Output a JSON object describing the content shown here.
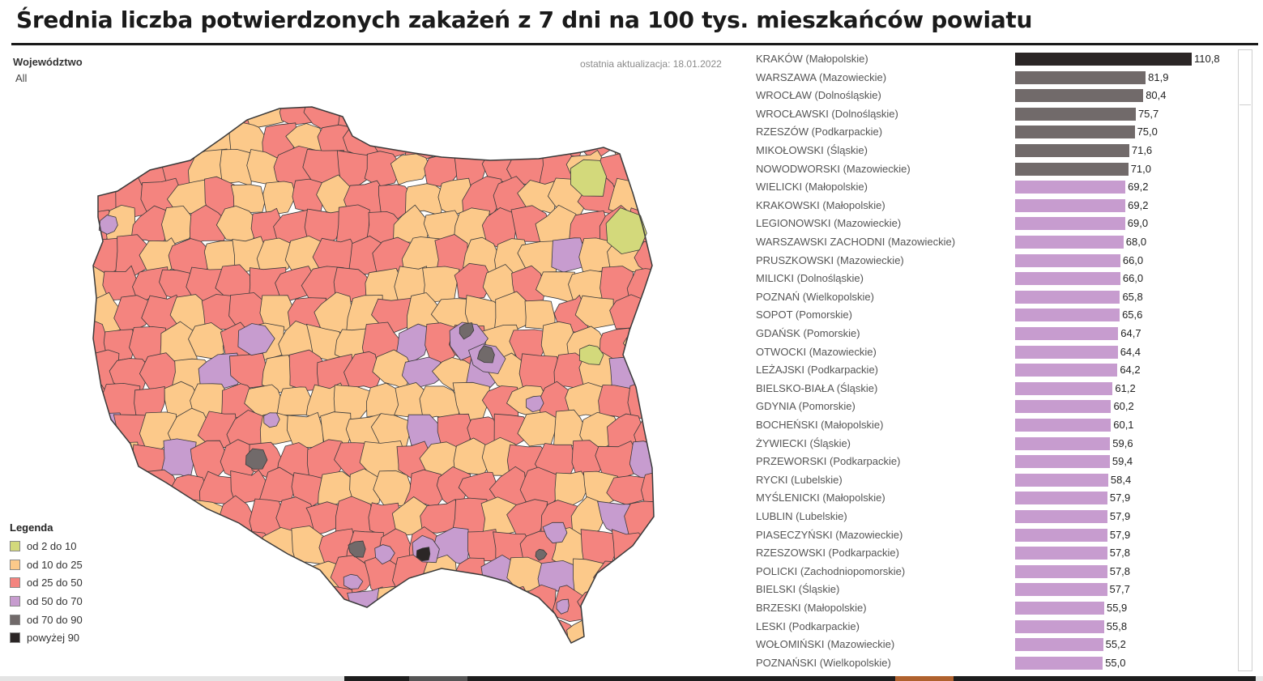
{
  "title": "Średnia liczba potwierdzonych zakażeń z 7 dni na 100 tys. mieszkańców powiatu",
  "filter": {
    "label": "Województwo",
    "value": "All"
  },
  "update_note": "ostatnia aktualizacja: 18.01.2022",
  "legend": {
    "title": "Legenda",
    "items": [
      {
        "label": "od 2 do 10",
        "color": "#d3d97b"
      },
      {
        "label": "od 10 do 25",
        "color": "#fcc98a"
      },
      {
        "label": "od 25 do 50",
        "color": "#f4847f"
      },
      {
        "label": "od 50 do 70",
        "color": "#c79ccf"
      },
      {
        "label": "od 70 do 90",
        "color": "#716a6a"
      },
      {
        "label": "powyżej 90",
        "color": "#2b2626"
      }
    ]
  },
  "chart_data": {
    "type": "bar",
    "orientation": "horizontal",
    "xlim": [
      0,
      110.8
    ],
    "categories": [
      "KRAKÓW (Małopolskie)",
      "WARSZAWA (Mazowieckie)",
      "WROCŁAW (Dolnośląskie)",
      "WROCŁAWSKI (Dolnośląskie)",
      "RZESZÓW (Podkarpackie)",
      "MIKOŁOWSKI (Śląskie)",
      "NOWODWORSKI (Mazowieckie)",
      "WIELICKI (Małopolskie)",
      "KRAKOWSKI (Małopolskie)",
      "LEGIONOWSKI (Mazowieckie)",
      "WARSZAWSKI ZACHODNI (Mazowieckie)",
      "PRUSZKOWSKI (Mazowieckie)",
      "MILICKI (Dolnośląskie)",
      "POZNAŃ (Wielkopolskie)",
      "SOPOT (Pomorskie)",
      "GDAŃSK (Pomorskie)",
      "OTWOCKI (Mazowieckie)",
      "LEŻAJSKI (Podkarpackie)",
      "BIELSKO-BIAŁA (Śląskie)",
      "GDYNIA (Pomorskie)",
      "BOCHEŃSKI (Małopolskie)",
      "ŻYWIECKI (Śląskie)",
      "PRZEWORSKI (Podkarpackie)",
      "RYCKI (Lubelskie)",
      "MYŚLENICKI (Małopolskie)",
      "LUBLIN (Lubelskie)",
      "PIASECZYŃSKI (Mazowieckie)",
      "RZESZOWSKI (Podkarpackie)",
      "POLICKI (Zachodniopomorskie)",
      "BIELSKI (Śląskie)",
      "BRZESKI (Małopolskie)",
      "LESKI (Podkarpackie)",
      "WOŁOMIŃSKI (Mazowieckie)",
      "POZNAŃSKI (Wielkopolskie)"
    ],
    "values": [
      110.8,
      81.9,
      80.4,
      75.7,
      75.0,
      71.6,
      71.0,
      69.2,
      69.2,
      69.0,
      68.0,
      66.0,
      66.0,
      65.8,
      65.6,
      64.7,
      64.4,
      64.2,
      61.2,
      60.2,
      60.1,
      59.6,
      59.4,
      58.4,
      57.9,
      57.9,
      57.9,
      57.8,
      57.8,
      57.7,
      55.9,
      55.8,
      55.2,
      55.0
    ],
    "value_labels": [
      "110,8",
      "81,9",
      "80,4",
      "75,7",
      "75,0",
      "71,6",
      "71,0",
      "69,2",
      "69,2",
      "69,0",
      "68,0",
      "66,0",
      "66,0",
      "65,8",
      "65,6",
      "64,7",
      "64,4",
      "64,2",
      "61,2",
      "60,2",
      "60,1",
      "59,6",
      "59,4",
      "58,4",
      "57,9",
      "57,9",
      "57,9",
      "57,8",
      "57,8",
      "57,7",
      "55,9",
      "55,8",
      "55,2",
      "55,0"
    ],
    "color_by_value": [
      {
        "min": 90,
        "color": "#2b2626"
      },
      {
        "min": 70,
        "color": "#716a6a"
      },
      {
        "min": 50,
        "color": "#c79ccf"
      }
    ]
  },
  "map": {
    "region_color_classes": [
      "#d3d97b",
      "#fcc98a",
      "#f4847f",
      "#c79ccf",
      "#716a6a",
      "#2b2626"
    ],
    "border_color": "#3a3a3a"
  }
}
